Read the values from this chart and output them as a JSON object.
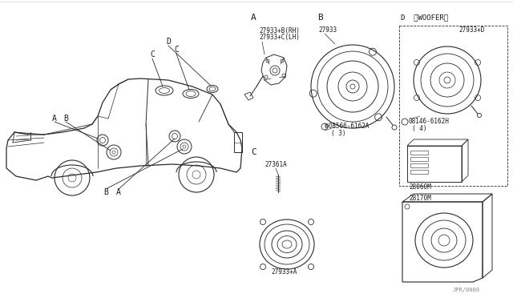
{
  "background_color": "#ffffff",
  "line_color": "#2a2a2a",
  "text_color": "#1a1a1a",
  "fig_width": 6.4,
  "fig_height": 3.72,
  "dpi": 100,
  "labels": {
    "sec_A": "A",
    "sec_B": "B",
    "sec_C": "C",
    "sec_D": "D  〈WOOFER〉",
    "part_A1": "27933+B(RH)",
    "part_A2": "27933+C(LH)",
    "part_B": "27933",
    "part_B_screw": "®08566-6162A",
    "part_B_qty": "( 3)",
    "part_C_screw": "27361A",
    "part_C": "27933+A",
    "part_D": "27933+D",
    "part_D_screw": "®08146-6162H",
    "part_D_qty": "( 4)",
    "part_amp": "28060M",
    "part_woofer_box": "28170M",
    "footnote": "JPR/0000",
    "car_A1": "A",
    "car_A2": "A",
    "car_B1": "B",
    "car_B2": "B",
    "car_C1": "C",
    "car_C2": "C",
    "car_D": "D"
  }
}
